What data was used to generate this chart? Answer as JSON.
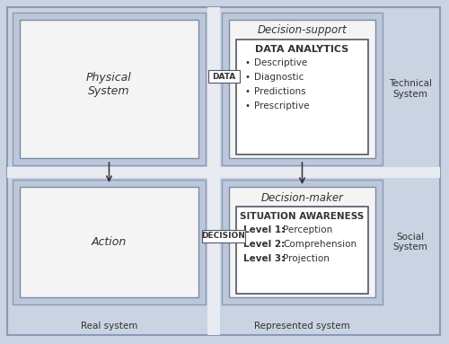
{
  "fig_bg": "#c9d3e2",
  "quad_bg_color": "#bcc8da",
  "inner_box_color": "#dde2ea",
  "white_box_color": "#f4f4f4",
  "content_white": "#ffffff",
  "cross_color": "#e8ecf2",
  "border_color": "#8a9ab5",
  "inner_border_color": "#7a8aa5",
  "content_border_color": "#555566",
  "text_color": "#333333",
  "arrow_color": "#333333",
  "label_data": "DATA",
  "label_decision": "DECISION",
  "physical_system_text": "Physical\nSystem",
  "action_text": "Action",
  "decision_support_title": "Decision-support",
  "decision_maker_title": "Decision-maker",
  "data_analytics_title": "DATA ANALYTICS",
  "data_analytics_items": [
    "Descriptive",
    "Diagnostic",
    "Predictions",
    "Prescriptive"
  ],
  "situation_awareness_title": "SITUATION AWARENESS",
  "sa_items_bold": [
    "Level 1",
    "Level 2",
    "Level 3"
  ],
  "sa_items_normal": [
    ": Perception",
    ": Comprehension",
    ": Projection"
  ],
  "technical_system_label": "Technical\nSystem",
  "social_system_label": "Social\nSystem",
  "real_system_label": "Real system",
  "represented_system_label": "Represented system"
}
